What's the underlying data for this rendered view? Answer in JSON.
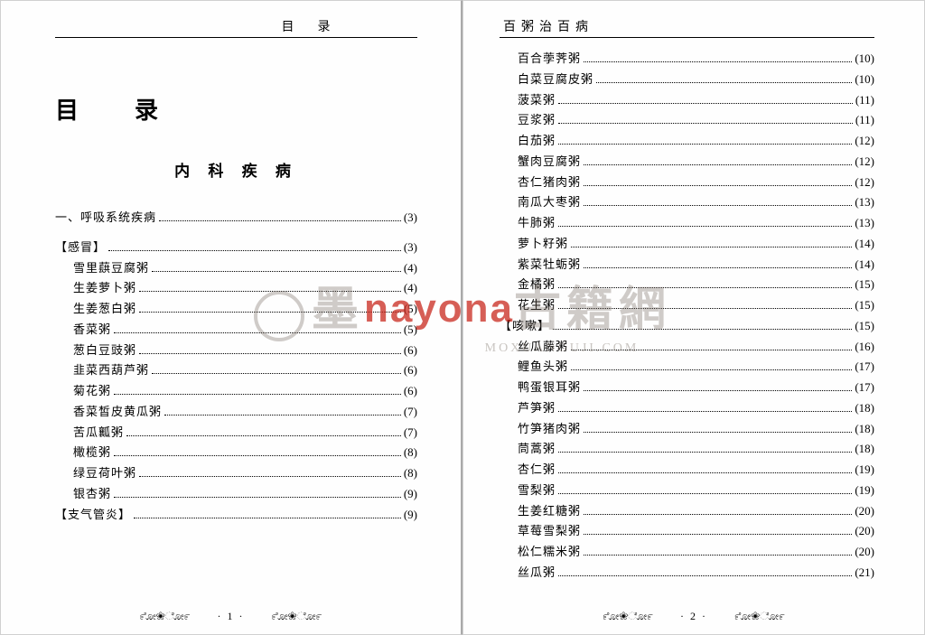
{
  "watermark": {
    "text_main": "墨軒古籍網",
    "text_red": "nayona",
    "text_sub": "MOXUANGUJI.COM",
    "main_color": "rgba(120,110,100,0.35)",
    "red_color": "rgba(200,40,30,0.75)"
  },
  "left": {
    "header": "目　录",
    "title": "目　录",
    "section_title": "内 科 疾 病",
    "entries": [
      {
        "label": "一、呼吸系统疾病",
        "page": "(3)",
        "indent": 0
      },
      {
        "label": "【感冒】",
        "page": "(3)",
        "indent": 1
      },
      {
        "label": "雪里蕻豆腐粥",
        "page": "(4)",
        "indent": 2
      },
      {
        "label": "生姜萝卜粥",
        "page": "(4)",
        "indent": 2
      },
      {
        "label": "生姜葱白粥",
        "page": "(5)",
        "indent": 2
      },
      {
        "label": "香菜粥",
        "page": "(5)",
        "indent": 2
      },
      {
        "label": "葱白豆豉粥",
        "page": "(6)",
        "indent": 2
      },
      {
        "label": "韭菜西葫芦粥",
        "page": "(6)",
        "indent": 2
      },
      {
        "label": "菊花粥",
        "page": "(6)",
        "indent": 2
      },
      {
        "label": "香菜皙皮黄瓜粥",
        "page": "(7)",
        "indent": 2
      },
      {
        "label": "苦瓜瓤粥",
        "page": "(7)",
        "indent": 2
      },
      {
        "label": "橄榄粥",
        "page": "(8)",
        "indent": 2
      },
      {
        "label": "绿豆荷叶粥",
        "page": "(8)",
        "indent": 2
      },
      {
        "label": "银杏粥",
        "page": "(9)",
        "indent": 2
      },
      {
        "label": "【支气管炎】",
        "page": "(9)",
        "indent": 1
      }
    ],
    "footer_num": "· 1 ·"
  },
  "right": {
    "header": "百粥治百病",
    "entries": [
      {
        "label": "百合荸荠粥",
        "page": "(10)",
        "indent": 2
      },
      {
        "label": "白菜豆腐皮粥",
        "page": "(10)",
        "indent": 2
      },
      {
        "label": "菠菜粥",
        "page": "(11)",
        "indent": 2
      },
      {
        "label": "豆浆粥",
        "page": "(11)",
        "indent": 2
      },
      {
        "label": "白茄粥",
        "page": "(12)",
        "indent": 2
      },
      {
        "label": "蟹肉豆腐粥",
        "page": "(12)",
        "indent": 2
      },
      {
        "label": "杏仁猪肉粥",
        "page": "(12)",
        "indent": 2
      },
      {
        "label": "南瓜大枣粥",
        "page": "(13)",
        "indent": 2
      },
      {
        "label": "牛肺粥",
        "page": "(13)",
        "indent": 2
      },
      {
        "label": "萝卜籽粥",
        "page": "(14)",
        "indent": 2
      },
      {
        "label": "紫菜牡蛎粥",
        "page": "(14)",
        "indent": 2
      },
      {
        "label": "金橘粥",
        "page": "(15)",
        "indent": 2
      },
      {
        "label": "花生粥",
        "page": "(15)",
        "indent": 2
      },
      {
        "label": "【咳嗽】",
        "page": "(15)",
        "indent": 1
      },
      {
        "label": "丝瓜藤粥",
        "page": "(16)",
        "indent": 2
      },
      {
        "label": "鲤鱼头粥",
        "page": "(17)",
        "indent": 2
      },
      {
        "label": "鸭蛋银耳粥",
        "page": "(17)",
        "indent": 2
      },
      {
        "label": "芦笋粥",
        "page": "(18)",
        "indent": 2
      },
      {
        "label": "竹笋猪肉粥",
        "page": "(18)",
        "indent": 2
      },
      {
        "label": "茼蒿粥",
        "page": "(18)",
        "indent": 2
      },
      {
        "label": "杏仁粥",
        "page": "(19)",
        "indent": 2
      },
      {
        "label": "雪梨粥",
        "page": "(19)",
        "indent": 2
      },
      {
        "label": "生姜红糖粥",
        "page": "(20)",
        "indent": 2
      },
      {
        "label": "草莓雪梨粥",
        "page": "(20)",
        "indent": 2
      },
      {
        "label": "松仁糯米粥",
        "page": "(20)",
        "indent": 2
      },
      {
        "label": "丝瓜粥",
        "page": "(21)",
        "indent": 2
      }
    ],
    "footer_num": "· 2 ·"
  },
  "ornament": "೯ೋ❀ೋ೯",
  "colors": {
    "text": "#000000",
    "bg": "#fefefe",
    "page_bg": "#e8e8e8"
  }
}
